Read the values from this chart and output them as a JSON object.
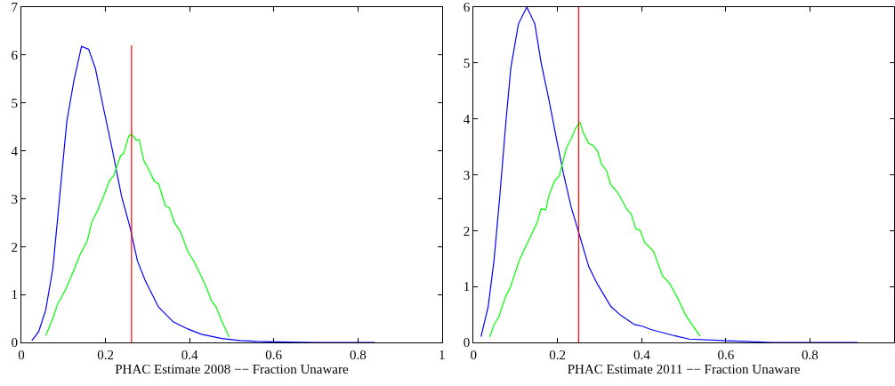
{
  "chart_data": [
    {
      "type": "line",
      "xlabel": "PHAC Estimate 2008 −− Fraction Unaware",
      "xlim": [
        0,
        1
      ],
      "ylim": [
        0,
        7
      ],
      "xticks": [
        0,
        0.2,
        0.4,
        0.6,
        0.8,
        1
      ],
      "yticks": [
        0,
        1,
        2,
        3,
        4,
        5,
        6,
        7
      ],
      "line_style": "solid",
      "marker": "none",
      "series": [
        {
          "color": "#0000ff",
          "x": [
            0.025,
            0.041,
            0.058,
            0.075,
            0.09,
            0.108,
            0.125,
            0.143,
            0.16,
            0.176,
            0.196,
            0.217,
            0.238,
            0.259,
            0.276,
            0.294,
            0.326,
            0.361,
            0.396,
            0.428,
            0.477,
            0.519,
            0.56,
            0.6,
            0.7,
            0.84
          ],
          "values": [
            0.04,
            0.22,
            0.68,
            1.55,
            2.94,
            4.61,
            5.47,
            6.18,
            6.12,
            5.72,
            4.86,
            3.99,
            3.06,
            2.38,
            1.7,
            1.3,
            0.74,
            0.43,
            0.28,
            0.17,
            0.08,
            0.04,
            0.02,
            0.01,
            0.0,
            0.0
          ]
        },
        {
          "color": "#00ff00",
          "x": [
            0.058,
            0.076,
            0.086,
            0.104,
            0.122,
            0.139,
            0.157,
            0.167,
            0.181,
            0.196,
            0.209,
            0.22,
            0.236,
            0.243,
            0.255,
            0.262,
            0.273,
            0.28,
            0.291,
            0.304,
            0.316,
            0.326,
            0.343,
            0.352,
            0.364,
            0.378,
            0.396,
            0.41,
            0.424,
            0.44,
            0.452,
            0.463,
            0.477,
            0.494
          ],
          "values": [
            0.14,
            0.53,
            0.8,
            1.08,
            1.45,
            1.82,
            2.13,
            2.5,
            2.75,
            3.06,
            3.37,
            3.49,
            3.9,
            3.94,
            4.3,
            4.35,
            4.22,
            4.24,
            3.8,
            3.59,
            3.37,
            3.31,
            2.84,
            2.81,
            2.5,
            2.32,
            1.89,
            1.7,
            1.45,
            1.14,
            0.87,
            0.74,
            0.43,
            0.11
          ]
        },
        {
          "color": "#ff0000",
          "x": [
            0.262,
            0.262
          ],
          "values": [
            0,
            6.2
          ]
        }
      ]
    },
    {
      "type": "line",
      "xlabel": "PHAC Estimate 2011 −− Fraction Unaware",
      "xlim": [
        0,
        1
      ],
      "ylim": [
        0,
        6
      ],
      "xticks": [
        0,
        0.2,
        0.4,
        0.6,
        0.8
      ],
      "yticks": [
        0,
        1,
        2,
        3,
        4,
        5,
        6
      ],
      "line_style": "solid",
      "marker": "none",
      "ref_lines": [
        {
          "axis": "x",
          "value": 0.25,
          "color": "#ff0000"
        }
      ],
      "series": [
        {
          "color": "#0000ff",
          "x": [
            0.018,
            0.035,
            0.049,
            0.063,
            0.077,
            0.089,
            0.107,
            0.127,
            0.146,
            0.161,
            0.179,
            0.197,
            0.214,
            0.232,
            0.251,
            0.274,
            0.295,
            0.327,
            0.351,
            0.383,
            0.401,
            0.422,
            0.478,
            0.513,
            0.604,
            0.709,
            0.913
          ],
          "values": [
            0.1,
            0.64,
            1.47,
            2.65,
            3.93,
            4.92,
            5.7,
            6.0,
            5.7,
            5.0,
            4.36,
            3.66,
            3.02,
            2.43,
            1.95,
            1.36,
            1.04,
            0.64,
            0.48,
            0.32,
            0.29,
            0.23,
            0.12,
            0.06,
            0.03,
            0.0,
            0.0
          ]
        },
        {
          "color": "#00ff00",
          "x": [
            0.039,
            0.049,
            0.06,
            0.077,
            0.088,
            0.109,
            0.119,
            0.133,
            0.151,
            0.161,
            0.172,
            0.179,
            0.193,
            0.204,
            0.221,
            0.232,
            0.242,
            0.253,
            0.26,
            0.274,
            0.284,
            0.295,
            0.305,
            0.316,
            0.326,
            0.344,
            0.365,
            0.375,
            0.386,
            0.396,
            0.407,
            0.428,
            0.449,
            0.467,
            0.483,
            0.505,
            0.539
          ],
          "values": [
            0.1,
            0.32,
            0.45,
            0.83,
            0.99,
            1.47,
            1.63,
            1.85,
            2.14,
            2.39,
            2.37,
            2.62,
            2.89,
            2.98,
            3.48,
            3.64,
            3.82,
            3.94,
            3.77,
            3.56,
            3.53,
            3.42,
            3.18,
            3.08,
            2.83,
            2.67,
            2.38,
            2.3,
            2.03,
            2.01,
            1.79,
            1.63,
            1.2,
            1.05,
            0.83,
            0.48,
            0.11
          ]
        }
      ]
    }
  ]
}
